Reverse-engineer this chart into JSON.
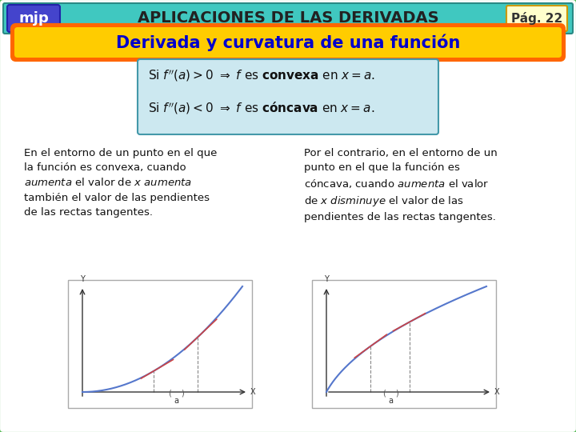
{
  "header_bg": "#40c8c0",
  "header_border": "#2a8a85",
  "mjp_bg": "#4444cc",
  "mjp_text": "mjp",
  "title_text": "APLICACIONES DE LAS DERIVADAS",
  "page_text": "Pág. 22",
  "page_bg": "#ffffcc",
  "page_border": "#cc9900",
  "subtitle_text": "Derivada y curvatura de una función",
  "subtitle_bg": "#ffcc00",
  "subtitle_border": "#ff6600",
  "subtitle_text_color": "#0000cc",
  "main_bg": "#ffffff",
  "main_border": "#66cc66",
  "formula_bg": "#cce8f0",
  "formula_border": "#4499aa",
  "line1": "Si $f''(a) > 0 \\Rightarrow f$ es $\\mathbf{convexa}$ en $x = a$.",
  "line2": "Si $f''(a) < 0 \\Rightarrow f$ es $\\mathbf{c\\acute{o}ncava}$ en $x = a$.",
  "text_left": "En el entorno de un punto en el que\nla función es convexa, cuando\naumenta el valor de x aumenta\ntambién el valor de las pendientes\nde las rectas tangentes.",
  "text_right": "Por el contrario, en el entorno de un\npunto en el que la función es\ncóncava, cuando aumenta el valor\nde x disminuye el valor de las\npendientes de las rectas tangentes.",
  "curve_color": "#5577cc",
  "tangent_color": "#cc4444",
  "dashed_color": "#888888",
  "axes_color": "#333333"
}
